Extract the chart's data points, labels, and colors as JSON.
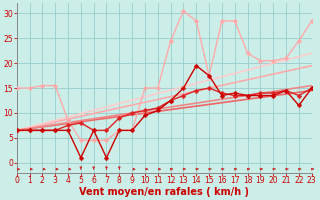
{
  "background_color": "#cceee8",
  "grid_color": "#99cccc",
  "xlabel": "Vent moyen/en rafales ( km/h )",
  "xlim": [
    0,
    23
  ],
  "ylim": [
    -2,
    32
  ],
  "yticks": [
    0,
    5,
    10,
    15,
    20,
    25,
    30
  ],
  "xticks": [
    0,
    1,
    2,
    3,
    4,
    5,
    6,
    7,
    8,
    9,
    10,
    11,
    12,
    13,
    14,
    15,
    16,
    17,
    18,
    19,
    20,
    21,
    22,
    23
  ],
  "series_data": [
    {
      "x": [
        0,
        1,
        2,
        3,
        4,
        5,
        6,
        7,
        8,
        9,
        10,
        11,
        12,
        13,
        14,
        15,
        16,
        17,
        18,
        19,
        20,
        21,
        22,
        23
      ],
      "y": [
        6.5,
        6.5,
        6.5,
        6.5,
        7.5,
        8.0,
        6.5,
        6.5,
        9.0,
        10.0,
        10.5,
        11.0,
        12.5,
        13.5,
        14.5,
        15.0,
        14.0,
        13.5,
        13.5,
        14.0,
        14.0,
        14.5,
        13.5,
        15.0
      ],
      "color": "#dd2222",
      "lw": 1.0,
      "ms": 2.5,
      "zorder": 6
    },
    {
      "x": [
        0,
        1,
        2,
        3,
        4,
        5,
        6,
        7,
        8,
        9,
        10,
        11,
        12,
        13,
        14,
        15,
        16,
        17,
        18,
        19,
        20,
        21,
        22,
        23
      ],
      "y": [
        6.5,
        6.5,
        6.5,
        6.5,
        6.5,
        1.0,
        6.5,
        1.0,
        6.5,
        6.5,
        9.5,
        10.5,
        12.5,
        15.0,
        19.5,
        17.5,
        13.5,
        14.0,
        13.5,
        13.5,
        13.5,
        14.5,
        11.5,
        15.0
      ],
      "color": "#cc0000",
      "lw": 1.0,
      "ms": 2.5,
      "zorder": 7
    },
    {
      "x": [
        0,
        1,
        2,
        3,
        4,
        5,
        6,
        7,
        8,
        9,
        10,
        11,
        12,
        13,
        14,
        15,
        16,
        17,
        18,
        19,
        20,
        21,
        22,
        23
      ],
      "y": [
        15.0,
        15.0,
        15.5,
        15.5,
        8.5,
        4.5,
        4.5,
        4.5,
        6.5,
        6.5,
        15.0,
        15.0,
        24.5,
        30.5,
        28.5,
        17.5,
        28.5,
        28.5,
        22.0,
        20.5,
        20.5,
        21.0,
        24.5,
        28.5
      ],
      "color": "#ffaaaa",
      "lw": 1.0,
      "ms": 2.5,
      "zorder": 5
    }
  ],
  "trend_lines": [
    {
      "x0": 0,
      "y0": 6.5,
      "x1": 23,
      "y1": 14.5,
      "color": "#ee6666",
      "lw": 1.2,
      "zorder": 3
    },
    {
      "x0": 0,
      "y0": 6.5,
      "x1": 23,
      "y1": 15.5,
      "color": "#ee8888",
      "lw": 1.2,
      "zorder": 3
    },
    {
      "x0": 0,
      "y0": 6.5,
      "x1": 23,
      "y1": 19.5,
      "color": "#ffaaaa",
      "lw": 1.2,
      "zorder": 2
    },
    {
      "x0": 0,
      "y0": 6.5,
      "x1": 23,
      "y1": 22.0,
      "color": "#ffcccc",
      "lw": 1.2,
      "zorder": 2
    }
  ],
  "arrow_color": "#cc2222",
  "xlabel_color": "#cc0000",
  "xlabel_fontsize": 7,
  "tick_color": "#cc0000",
  "tick_fontsize": 5.5
}
